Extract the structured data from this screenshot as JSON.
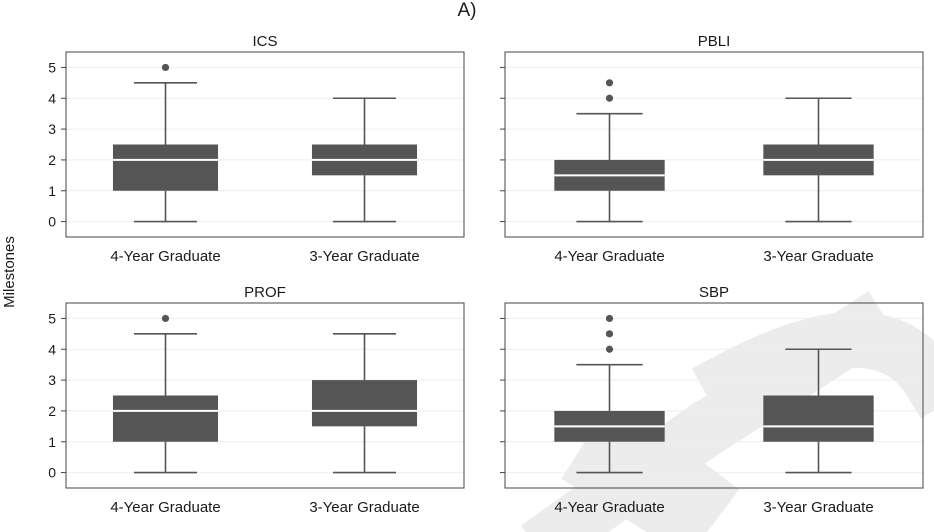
{
  "figure": {
    "label": "A)",
    "ylabel": "Milestones",
    "watermark": "ACCEPTED"
  },
  "chart_data": [
    {
      "type": "boxplot",
      "title": "ICS",
      "categories": [
        "4-Year Graduate",
        "3-Year Graduate"
      ],
      "ylim": [
        -0.5,
        5.5
      ],
      "yticks": [
        0,
        1,
        2,
        3,
        4,
        5
      ],
      "grid": true,
      "boxes": [
        {
          "category": "4-Year Graduate",
          "min": 0,
          "q1": 1,
          "median": 2,
          "q3": 2.5,
          "max": 4.5,
          "outliers": [
            5
          ]
        },
        {
          "category": "3-Year Graduate",
          "min": 0,
          "q1": 1.5,
          "median": 2,
          "q3": 2.5,
          "max": 4,
          "outliers": []
        }
      ]
    },
    {
      "type": "boxplot",
      "title": "PBLI",
      "categories": [
        "4-Year Graduate",
        "3-Year Graduate"
      ],
      "ylim": [
        -0.5,
        5.5
      ],
      "yticks": [
        0,
        1,
        2,
        3,
        4,
        5
      ],
      "grid": true,
      "boxes": [
        {
          "category": "4-Year Graduate",
          "min": 0,
          "q1": 1,
          "median": 1.5,
          "q3": 2,
          "max": 3.5,
          "outliers": [
            4,
            4.5
          ]
        },
        {
          "category": "3-Year Graduate",
          "min": 0,
          "q1": 1.5,
          "median": 2,
          "q3": 2.5,
          "max": 4,
          "outliers": []
        }
      ]
    },
    {
      "type": "boxplot",
      "title": "PROF",
      "categories": [
        "4-Year Graduate",
        "3-Year Graduate"
      ],
      "ylim": [
        -0.5,
        5.5
      ],
      "yticks": [
        0,
        1,
        2,
        3,
        4,
        5
      ],
      "grid": true,
      "boxes": [
        {
          "category": "4-Year Graduate",
          "min": 0,
          "q1": 1,
          "median": 2,
          "q3": 2.5,
          "max": 4.5,
          "outliers": [
            5
          ]
        },
        {
          "category": "3-Year Graduate",
          "min": 0,
          "q1": 1.5,
          "median": 2,
          "q3": 3,
          "max": 4.5,
          "outliers": []
        }
      ]
    },
    {
      "type": "boxplot",
      "title": "SBP",
      "categories": [
        "4-Year Graduate",
        "3-Year Graduate"
      ],
      "ylim": [
        -0.5,
        5.5
      ],
      "yticks": [
        0,
        1,
        2,
        3,
        4,
        5
      ],
      "grid": true,
      "boxes": [
        {
          "category": "4-Year Graduate",
          "min": 0,
          "q1": 1,
          "median": 1.5,
          "q3": 2,
          "max": 3.5,
          "outliers": [
            4,
            4.5,
            5
          ]
        },
        {
          "category": "3-Year Graduate",
          "min": 0,
          "q1": 1,
          "median": 1.5,
          "q3": 2.5,
          "max": 4,
          "outliers": []
        }
      ]
    }
  ],
  "colors": {
    "box_fill": "#555555",
    "median_line": "#ffffff",
    "whisker": "#555555",
    "outlier": "#555555",
    "frame": "#444444",
    "grid": "#eeeeee",
    "watermark": "#ececec"
  }
}
